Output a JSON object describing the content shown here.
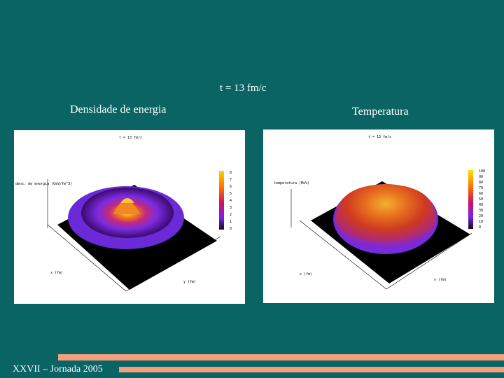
{
  "slide": {
    "time_label": "t = 13 fm/c",
    "footer": "XXVII – Jornada 2005",
    "background_color": "#0b6464",
    "accent_color": "#f3a07d"
  },
  "panels": [
    {
      "title": "Densidade de energia",
      "plot_title": "t = 13 fm/c",
      "z_label": "dens. de energia (GeV/fm^3)",
      "x_label": "x (fm)",
      "y_label": "y (fm)",
      "colorbar_ticks": [
        "8",
        "7",
        "6",
        "5",
        "4",
        "3",
        "2",
        "1",
        "0"
      ]
    },
    {
      "title": "Temperatura",
      "plot_title": "t = 13 fm/c",
      "z_label": "temperatura (MeV)",
      "x_label": "x (fm)",
      "y_label": "y (fm)",
      "colorbar_ticks": [
        "100",
        "90",
        "80",
        "70",
        "60",
        "50",
        "40",
        "30",
        "20",
        "10",
        "0"
      ]
    }
  ]
}
